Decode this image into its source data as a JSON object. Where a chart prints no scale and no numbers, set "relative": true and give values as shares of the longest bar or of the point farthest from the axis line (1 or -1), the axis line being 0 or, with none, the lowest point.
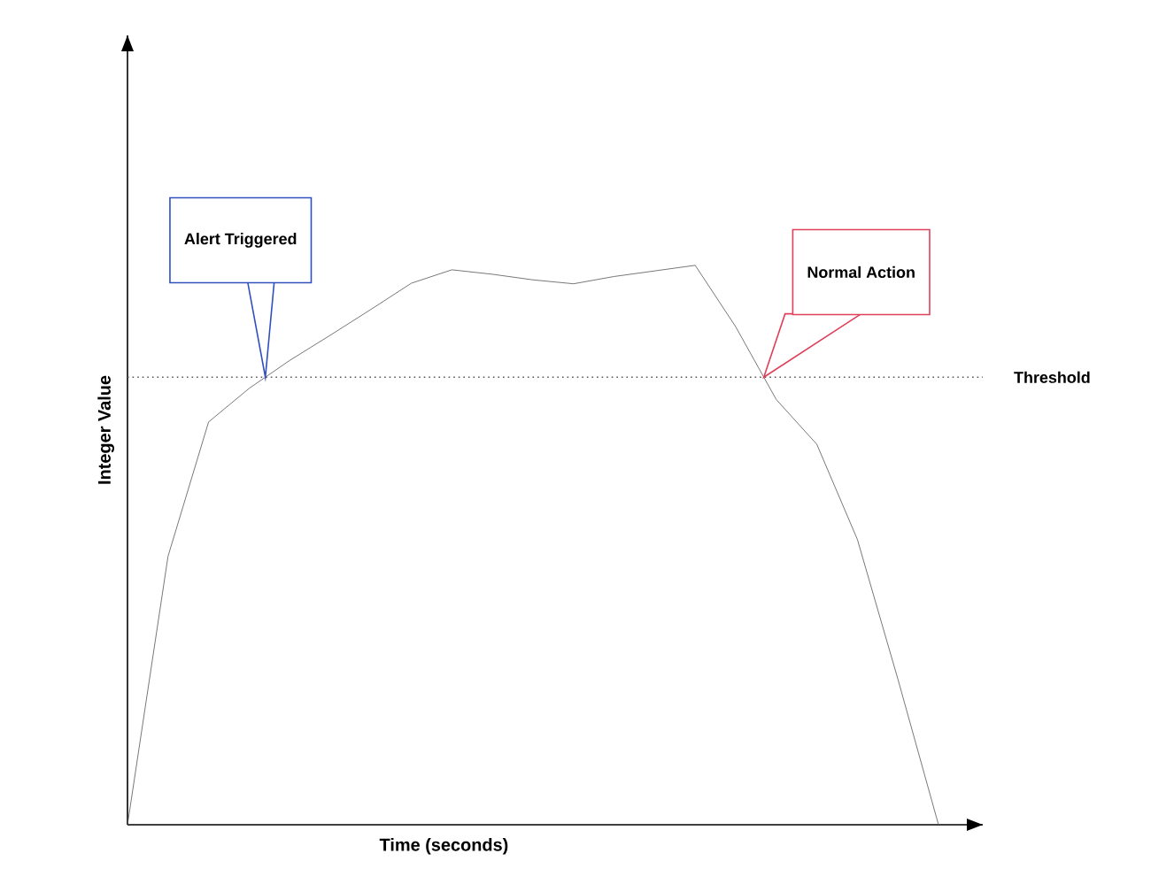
{
  "chart_data": {
    "type": "line",
    "relative": true,
    "xlabel": "Time (seconds)",
    "ylabel": "Integer Value",
    "categories": [
      null,
      null,
      null,
      null,
      null,
      null,
      null,
      null,
      null,
      null,
      null,
      null,
      null,
      null,
      null,
      null,
      null,
      null,
      null,
      null,
      null
    ],
    "series": [
      {
        "color": "#555555",
        "values": [
          0,
          0.48,
          0.72,
          0.78,
          0.83,
          0.875,
          0.921,
          0.968,
          0.992,
          0.984,
          0.974,
          0.967,
          0.98,
          0.99,
          1,
          0.89,
          0.76,
          0.68,
          0.51,
          0.26,
          0
        ]
      }
    ],
    "ref_lines": [
      {
        "axis": "y",
        "value": 0.8,
        "label": "Threshold",
        "line_style": "dotted",
        "color": "#555555"
      }
    ],
    "annotations": [
      "Alert Triggered",
      "Normal Action"
    ],
    "marker": "none",
    "line_style": "solid"
  }
}
